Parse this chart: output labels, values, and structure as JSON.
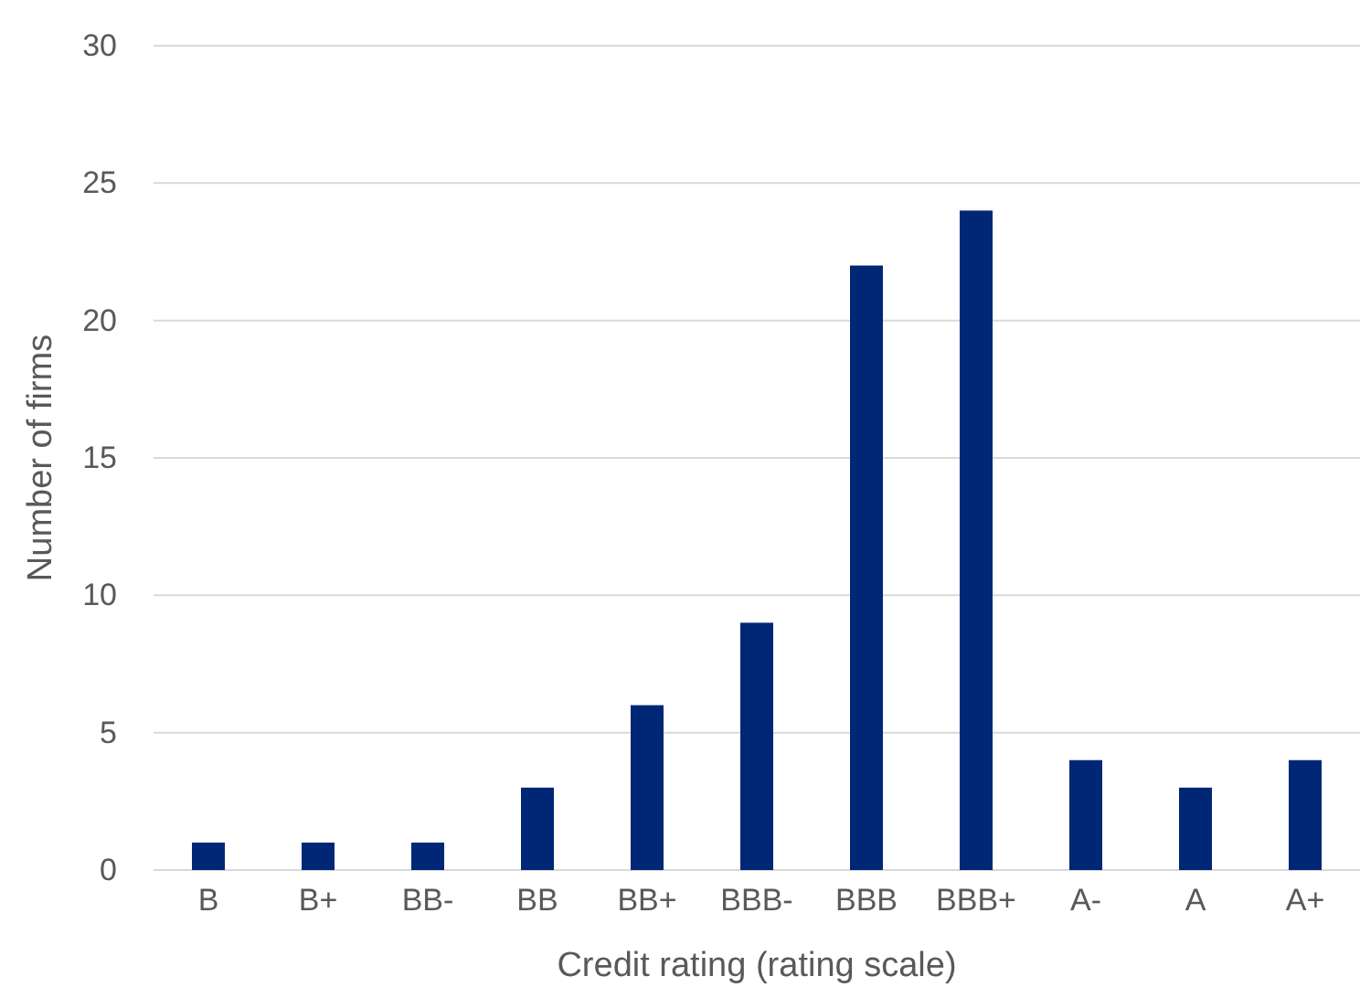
{
  "chart_data": {
    "type": "bar",
    "categories": [
      "B",
      "B+",
      "BB-",
      "BB",
      "BB+",
      "BBB-",
      "BBB",
      "BBB+",
      "A-",
      "A",
      "A+"
    ],
    "values": [
      1,
      1,
      1,
      3,
      6,
      9,
      22,
      24,
      4,
      3,
      4
    ],
    "color": "#002776",
    "xlabel": "Credit rating (rating scale)",
    "ylabel": "Number of firms",
    "ylim": [
      0,
      30
    ],
    "yticks": [
      0,
      5,
      10,
      15,
      20,
      25,
      30
    ],
    "grid": "y"
  }
}
